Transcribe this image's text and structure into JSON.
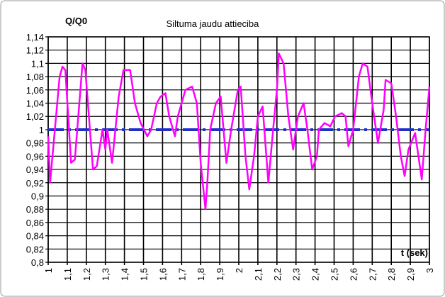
{
  "chart_data": {
    "type": "line",
    "title": "Q/Q0",
    "subtitle": "Siltuma jaudu attieciba",
    "x_label": "t (sek)",
    "xlim": [
      1,
      3
    ],
    "ylim": [
      0.8,
      1.14
    ],
    "grid": true,
    "xticks": [
      1,
      {
        "value": 1.1,
        "label": "1,1"
      },
      {
        "value": 1.2,
        "label": "1,2"
      },
      {
        "value": 1.3,
        "label": "1,3"
      },
      {
        "value": 1.4,
        "label": "1,4"
      },
      {
        "value": 1.5,
        "label": "1,5"
      },
      {
        "value": 1.6,
        "label": "1,6"
      },
      {
        "value": 1.7,
        "label": "1,7"
      },
      {
        "value": 1.8,
        "label": "1,8"
      },
      {
        "value": 1.9,
        "label": "1,9"
      },
      2,
      {
        "value": 2.1,
        "label": "2,1"
      },
      {
        "value": 2.2,
        "label": "2,2"
      },
      {
        "value": 2.3,
        "label": "2,3"
      },
      {
        "value": 2.4,
        "label": "2,4"
      },
      {
        "value": 2.5,
        "label": "2,5"
      },
      {
        "value": 2.6,
        "label": "2,6"
      },
      {
        "value": 2.7,
        "label": "2,7"
      },
      {
        "value": 2.8,
        "label": "2,8"
      },
      {
        "value": 2.9,
        "label": "2,9"
      },
      3
    ],
    "yticks": [
      {
        "value": 0.8,
        "label": "0,8"
      },
      {
        "value": 0.82,
        "label": "0,82"
      },
      {
        "value": 0.84,
        "label": "0,84"
      },
      {
        "value": 0.86,
        "label": "0,86"
      },
      {
        "value": 0.88,
        "label": "0,88"
      },
      {
        "value": 0.9,
        "label": "0,9"
      },
      {
        "value": 0.92,
        "label": "0,92"
      },
      {
        "value": 0.94,
        "label": "0,94"
      },
      {
        "value": 0.96,
        "label": "0,96"
      },
      {
        "value": 0.98,
        "label": "0,98"
      },
      1,
      {
        "value": 1.02,
        "label": "1,02"
      },
      {
        "value": 1.04,
        "label": "1,04"
      },
      {
        "value": 1.06,
        "label": "1,06"
      },
      {
        "value": 1.08,
        "label": "1,08"
      },
      {
        "value": 1.1,
        "label": "1,1"
      },
      {
        "value": 1.12,
        "label": "1,12"
      },
      {
        "value": 1.14,
        "label": "1,14"
      }
    ],
    "series": [
      {
        "color": "#ff00ff",
        "dashed": false,
        "x": [
          1.0,
          1.01,
          1.06,
          1.075,
          1.09,
          1.12,
          1.14,
          1.18,
          1.195,
          1.235,
          1.255,
          1.285,
          1.3,
          1.31,
          1.335,
          1.37,
          1.395,
          1.43,
          1.455,
          1.485,
          1.52,
          1.54,
          1.57,
          1.59,
          1.615,
          1.635,
          1.665,
          1.68,
          1.72,
          1.755,
          1.78,
          1.8,
          1.825,
          1.835,
          1.85,
          1.88,
          1.905,
          1.935,
          1.96,
          1.995,
          2.01,
          2.035,
          2.055,
          2.08,
          2.1,
          2.125,
          2.155,
          2.18,
          2.2,
          2.21,
          2.235,
          2.26,
          2.285,
          2.31,
          2.34,
          2.36,
          2.385,
          2.41,
          2.42,
          2.45,
          2.48,
          2.505,
          2.54,
          2.56,
          2.575,
          2.6,
          2.63,
          2.65,
          2.675,
          2.7,
          2.73,
          2.76,
          2.77,
          2.8,
          2.825,
          2.85,
          2.87,
          2.89,
          2.925,
          2.96,
          2.98,
          3.0
        ],
        "values": [
          0.99,
          0.92,
          1.08,
          1.095,
          1.09,
          0.95,
          0.955,
          1.1,
          1.09,
          0.94,
          0.945,
          1.0,
          0.97,
          1.0,
          0.95,
          1.05,
          1.09,
          1.09,
          1.04,
          1.01,
          0.99,
          1.0,
          1.04,
          1.05,
          1.055,
          1.02,
          0.99,
          1.02,
          1.06,
          1.065,
          1.04,
          0.95,
          0.88,
          0.92,
          1.0,
          1.04,
          1.05,
          0.95,
          1.0,
          1.06,
          1.065,
          0.96,
          0.91,
          0.96,
          1.02,
          1.035,
          0.92,
          1.0,
          1.06,
          1.115,
          1.1,
          1.02,
          0.97,
          1.02,
          1.04,
          1.0,
          0.94,
          0.96,
          1.0,
          1.01,
          1.005,
          1.02,
          1.025,
          1.02,
          0.975,
          1.0,
          1.08,
          1.1,
          1.095,
          1.04,
          0.98,
          1.03,
          1.075,
          1.07,
          1.02,
          0.96,
          0.93,
          0.97,
          0.995,
          0.925,
          1.0,
          1.065
        ]
      },
      {
        "color": "#1f2fc8",
        "dashed": true,
        "x": [
          1,
          3
        ],
        "values": [
          1,
          1
        ]
      }
    ]
  }
}
